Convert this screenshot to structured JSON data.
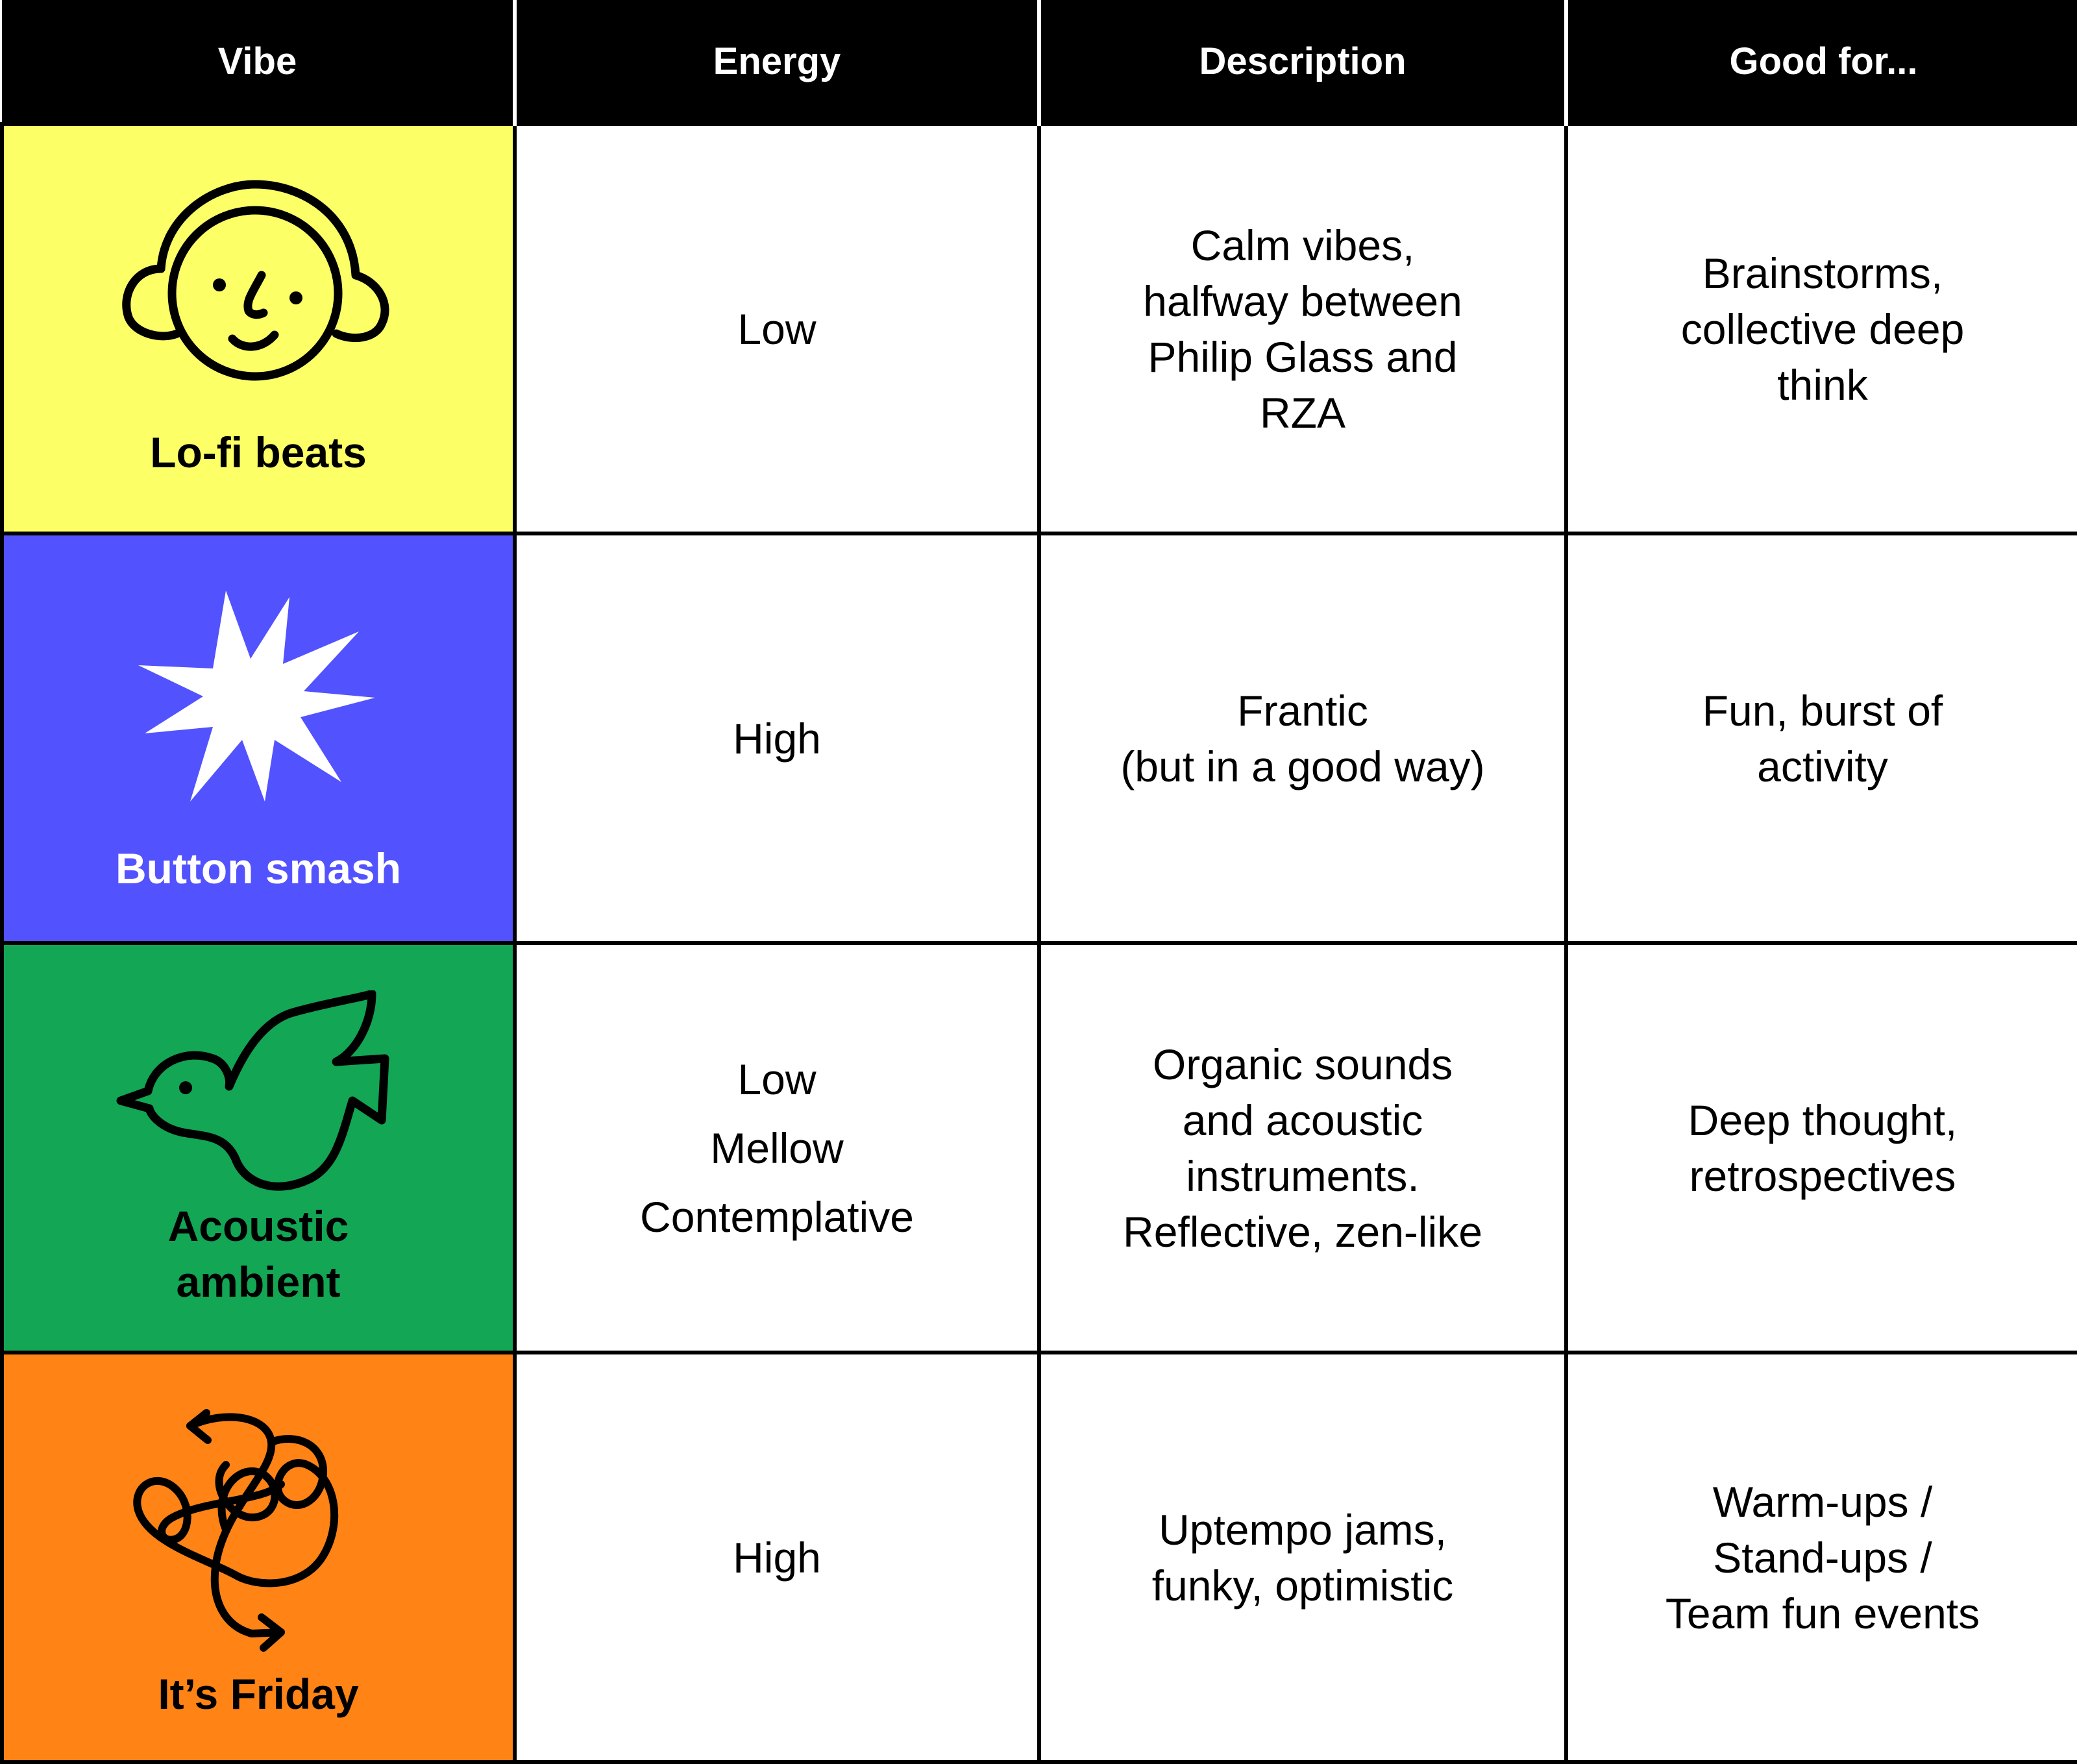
{
  "header": {
    "vibe": "Vibe",
    "energy": "Energy",
    "description": "Description",
    "good_for": "Good for..."
  },
  "rows": [
    {
      "name": "Lo-fi beats",
      "icon": "headphones-face-icon",
      "color": "#FCFF66",
      "energy": [
        "Low"
      ],
      "description": [
        "Calm vibes,",
        "halfway between",
        "Philip Glass and",
        "RZA"
      ],
      "good_for": [
        "Brainstorms,",
        "collective deep",
        "think"
      ]
    },
    {
      "name": "Button smash",
      "icon": "starburst-icon",
      "color": "#5252FF",
      "energy": [
        "High"
      ],
      "description": [
        "Frantic",
        "(but in a good way)"
      ],
      "good_for": [
        "Fun, burst of",
        "activity"
      ]
    },
    {
      "name": [
        "Acoustic",
        "ambient"
      ],
      "icon": "bird-icon",
      "color": "#12A655",
      "energy": [
        "Low",
        "Mellow",
        "Contemplative"
      ],
      "description": [
        "Organic sounds",
        "and acoustic",
        "instruments.",
        "Reflective, zen-like"
      ],
      "good_for": [
        "Deep thought,",
        "retrospectives"
      ]
    },
    {
      "name": "It’s Friday",
      "icon": "scribble-arrows-icon",
      "color": "#FF8315",
      "energy": [
        "High"
      ],
      "description": [
        "Uptempo jams,",
        "funky, optimistic"
      ],
      "good_for": [
        "Warm-ups /",
        "Stand-ups /",
        "Team fun events"
      ]
    }
  ]
}
